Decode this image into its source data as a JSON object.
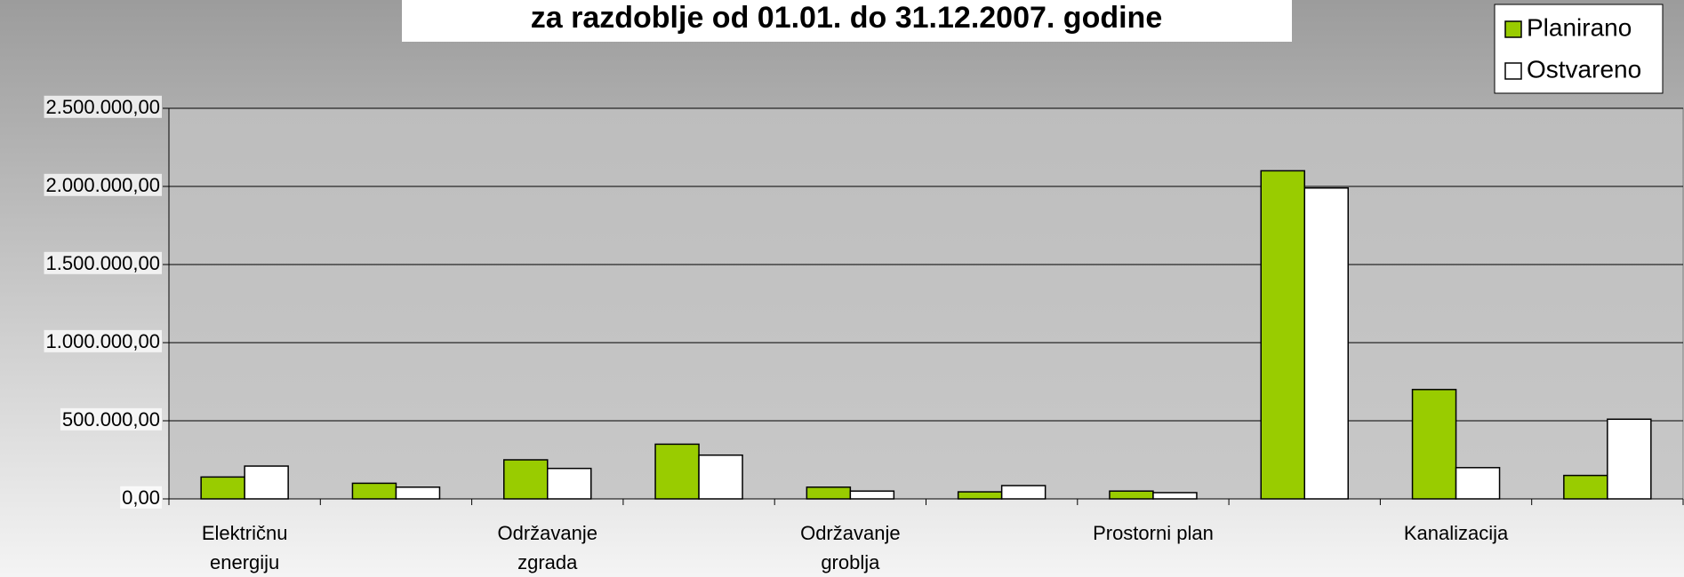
{
  "chart_data": {
    "type": "bar",
    "title": "za razdoblje od 01.01. do 31.12.2007. godine",
    "categories": [
      "Električnu energiju",
      null,
      "Održavanje zgrada",
      null,
      "Održavanje groblja",
      null,
      "Prostorni plan",
      null,
      "Kanalizacija",
      null
    ],
    "series": [
      {
        "name": "Planirano",
        "color": "#99cc00",
        "values": [
          140000,
          100000,
          250000,
          350000,
          75000,
          45000,
          50000,
          2100000,
          700000,
          150000
        ]
      },
      {
        "name": "Ostvareno",
        "color": "#ffffff",
        "values": [
          210000,
          75000,
          195000,
          280000,
          50000,
          85000,
          40000,
          1990000,
          200000,
          510000
        ]
      }
    ],
    "ylim": [
      0,
      2500000
    ],
    "yticks": [
      {
        "value": 0,
        "label": "0,00"
      },
      {
        "value": 500000,
        "label": "500.000,00"
      },
      {
        "value": 1000000,
        "label": "1.000.000,00"
      },
      {
        "value": 1500000,
        "label": "1.500.000,00"
      },
      {
        "value": 2000000,
        "label": "2.000.000,00"
      },
      {
        "value": 2500000,
        "label": "2.500.000,00"
      }
    ],
    "grid": true,
    "legend": "top-right"
  }
}
